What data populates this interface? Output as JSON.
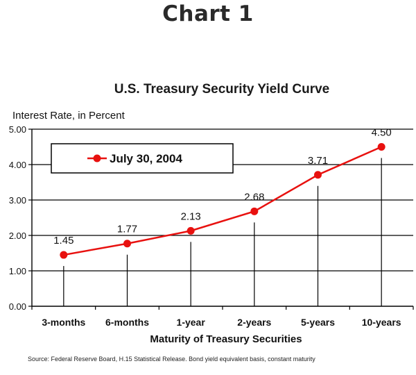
{
  "page": {
    "heading": "Chart 1"
  },
  "chart_data": {
    "type": "line",
    "title": "U.S. Treasury Security Yield Curve",
    "ylabel": "Interest Rate, in Percent",
    "xlabel": "Maturity of Treasury Securities",
    "categories": [
      "3-months",
      "6-months",
      "1-year",
      "2-years",
      "5-years",
      "10-years"
    ],
    "series": [
      {
        "name": "July 30, 2004",
        "values": [
          1.45,
          1.77,
          2.13,
          2.68,
          3.71,
          4.5
        ],
        "data_labels": [
          "1.45",
          "1.77",
          "2.13",
          "2.68",
          "3.71",
          "4.50"
        ]
      }
    ],
    "ylim": [
      0,
      5
    ],
    "yticks": [
      "0.00",
      "1.00",
      "2.00",
      "3.00",
      "4.00",
      "5.00"
    ],
    "grid": "horizontal",
    "legend_position": "top-left",
    "line_color": "#e8110f",
    "source": "Source: Federal Reserve Board, H.15 Statistical Release. Bond yield equivalent basis, constant maturity"
  }
}
